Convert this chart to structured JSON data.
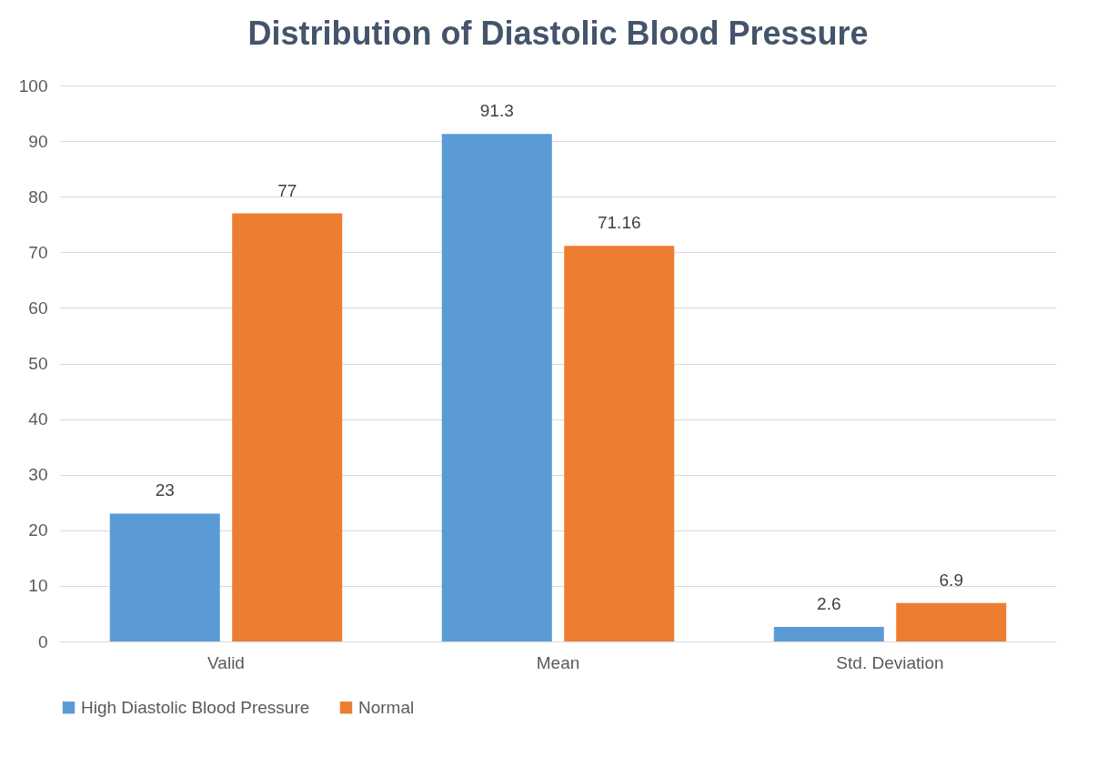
{
  "chart_data": {
    "type": "bar",
    "title": "Distribution of Diastolic Blood Pressure",
    "categories": [
      "Valid",
      "Mean",
      "Std. Deviation"
    ],
    "series": [
      {
        "name": "High Diastolic Blood Pressure",
        "color": "#5b9bd5",
        "values": [
          23,
          91.3,
          2.6
        ]
      },
      {
        "name": "Normal",
        "color": "#ed7d31",
        "values": [
          77,
          71.16,
          6.9
        ]
      }
    ],
    "ylim": [
      0,
      100
    ],
    "yticks": [
      0,
      10,
      20,
      30,
      40,
      50,
      60,
      70,
      80,
      90,
      100
    ],
    "grid": "y",
    "legend": "bottom",
    "data_labels": true
  }
}
